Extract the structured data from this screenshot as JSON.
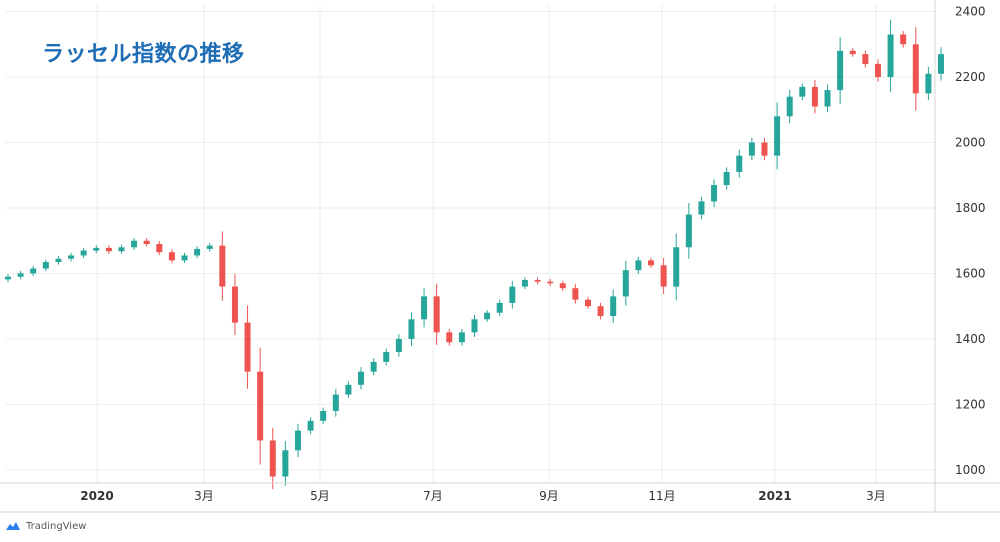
{
  "title": "ラッセル指数の推移",
  "branding": {
    "logo_text": "TradingView",
    "logo_icon": "tradingview-cloud-icon"
  },
  "colors": {
    "up": "#26a69a",
    "down": "#ef5350",
    "title": "#1e6db5",
    "grid": "#eeeeee",
    "axis_text": "#333333"
  },
  "chart_data": {
    "type": "candlestick",
    "title": "ラッセル指数の推移",
    "x_tick_labels": [
      "2020",
      "3月",
      "5月",
      "7月",
      "9月",
      "11月",
      "2021",
      "3月"
    ],
    "y_tick_labels": [
      "1000",
      "1200",
      "1400",
      "1600",
      "1800",
      "2000",
      "2200",
      "2400"
    ],
    "ylim": [
      960,
      2420
    ],
    "x_axis": "weekly, Dec 2019 – Apr 2021",
    "grid": true,
    "y_axis_position": "right",
    "series": [
      {
        "type": "candlestick",
        "timeframe": "weekly",
        "closes": [
          1590,
          1600,
          1615,
          1635,
          1645,
          1655,
          1670,
          1678,
          1668,
          1680,
          1700,
          1690,
          1665,
          1640,
          1655,
          1675,
          1685,
          1560,
          1450,
          1300,
          1090,
          980,
          1060,
          1120,
          1150,
          1180,
          1230,
          1260,
          1300,
          1330,
          1360,
          1400,
          1460,
          1530,
          1420,
          1390,
          1420,
          1460,
          1480,
          1510,
          1560,
          1580,
          1575,
          1570,
          1555,
          1520,
          1500,
          1470,
          1530,
          1610,
          1640,
          1625,
          1560,
          1680,
          1780,
          1820,
          1870,
          1910,
          1960,
          2000,
          1960,
          2080,
          2140,
          2170,
          2110,
          2160,
          2280,
          2270,
          2240,
          2200,
          2330,
          2300,
          2150,
          2210,
          2270
        ]
      }
    ]
  }
}
